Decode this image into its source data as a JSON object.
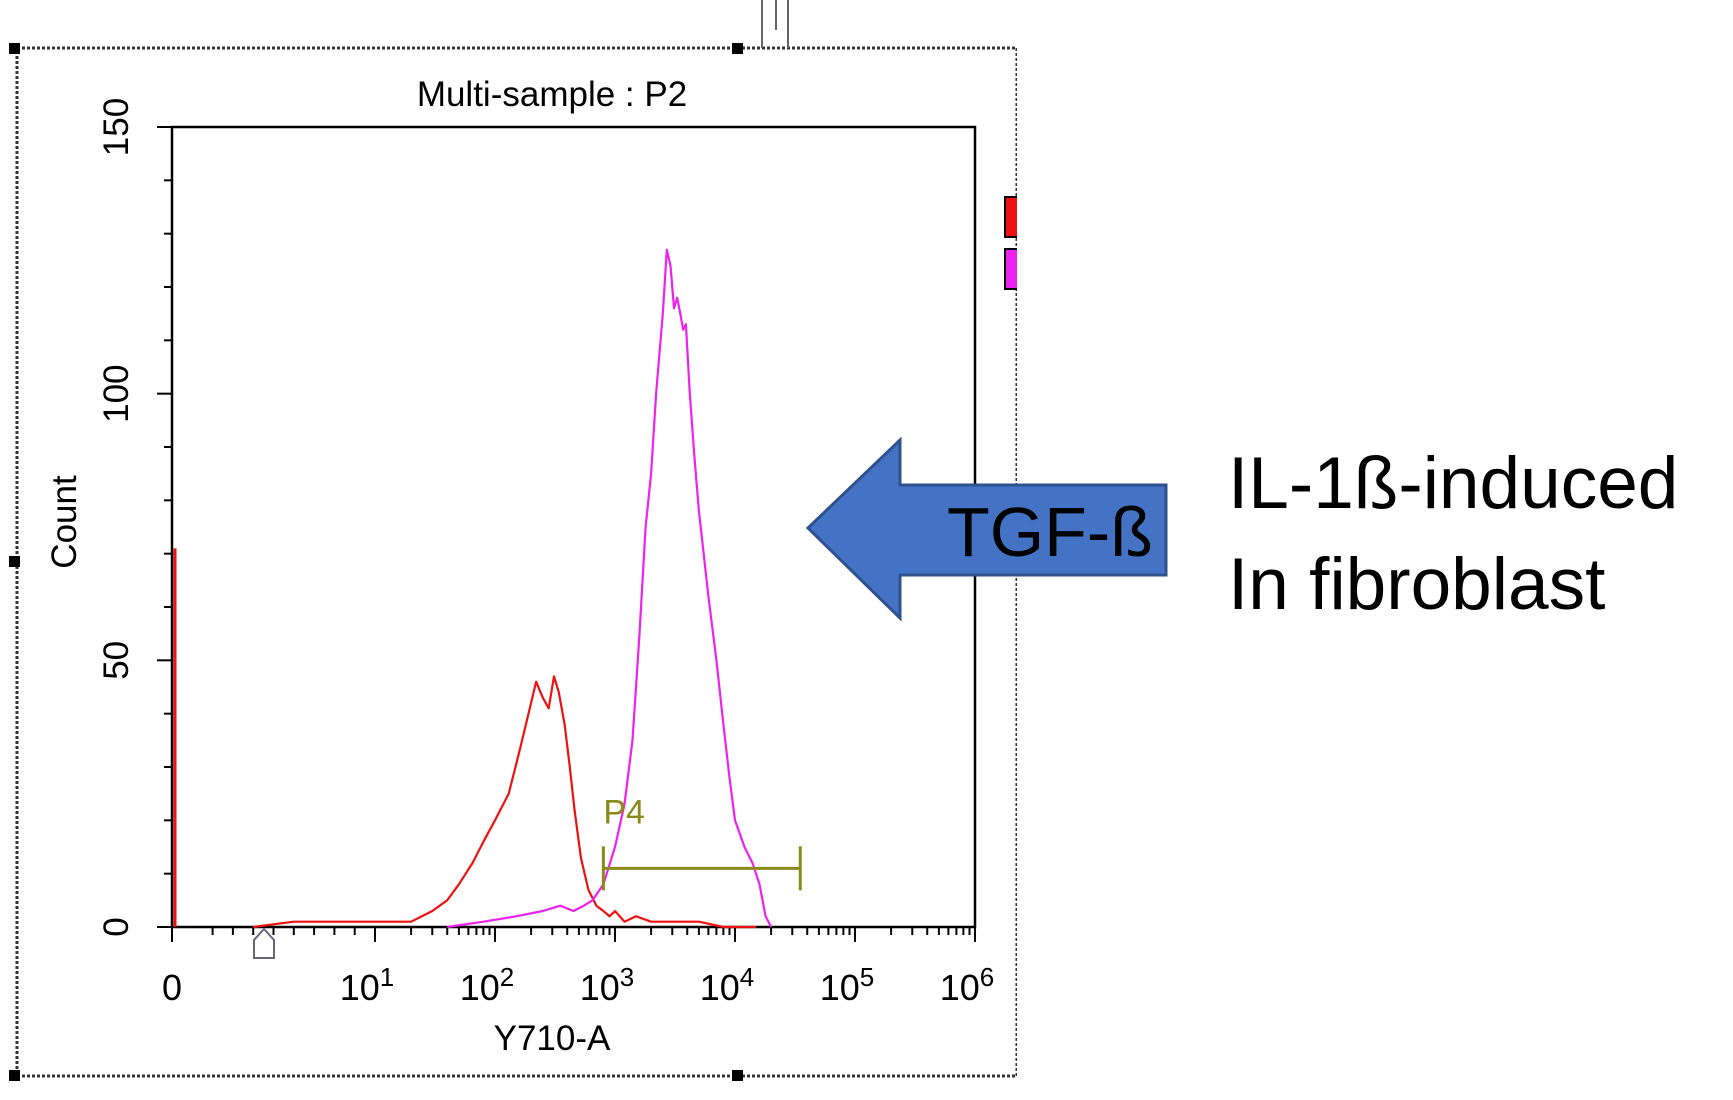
{
  "chart_data": {
    "type": "area",
    "title": "Multi-sample : P2",
    "xlabel": "Y710-A",
    "ylabel": "Count",
    "x_scale": "biexponential",
    "ylim": [
      0,
      150
    ],
    "y_ticks": [
      "0",
      "50",
      "100",
      "150"
    ],
    "x_ticks": [
      {
        "value": 0,
        "base": "0",
        "exp": ""
      },
      {
        "value": 10,
        "base": "10",
        "exp": "1"
      },
      {
        "value": 100,
        "base": "10",
        "exp": "2"
      },
      {
        "value": 1000,
        "base": "10",
        "exp": "3"
      },
      {
        "value": 10000,
        "base": "10",
        "exp": "4"
      },
      {
        "value": 100000,
        "base": "10",
        "exp": "5"
      },
      {
        "value": 1000000,
        "base": "10",
        "exp": "6"
      }
    ],
    "series": [
      {
        "color": "#ee1111",
        "points": [
          [
            4,
            0
          ],
          [
            6,
            1
          ],
          [
            10,
            1
          ],
          [
            20,
            1
          ],
          [
            30,
            3
          ],
          [
            40,
            5
          ],
          [
            50,
            8
          ],
          [
            65,
            12
          ],
          [
            80,
            16
          ],
          [
            100,
            20
          ],
          [
            130,
            25
          ],
          [
            160,
            33
          ],
          [
            190,
            40
          ],
          [
            220,
            46
          ],
          [
            250,
            43
          ],
          [
            280,
            41
          ],
          [
            310,
            47
          ],
          [
            340,
            44
          ],
          [
            380,
            38
          ],
          [
            420,
            30
          ],
          [
            460,
            22
          ],
          [
            520,
            13
          ],
          [
            600,
            7
          ],
          [
            700,
            4
          ],
          [
            800,
            3
          ],
          [
            900,
            2
          ],
          [
            1000,
            3
          ],
          [
            1200,
            1
          ],
          [
            1500,
            2
          ],
          [
            2000,
            1
          ],
          [
            3000,
            1
          ],
          [
            5000,
            1
          ],
          [
            8000,
            0
          ],
          [
            15000,
            0
          ]
        ],
        "axis_spike": 71
      },
      {
        "color": "#ee22ee",
        "points": [
          [
            40,
            0
          ],
          [
            80,
            1
          ],
          [
            150,
            2
          ],
          [
            250,
            3
          ],
          [
            350,
            4
          ],
          [
            450,
            3
          ],
          [
            550,
            4
          ],
          [
            650,
            5
          ],
          [
            800,
            8
          ],
          [
            1000,
            15
          ],
          [
            1200,
            23
          ],
          [
            1400,
            35
          ],
          [
            1600,
            55
          ],
          [
            1800,
            75
          ],
          [
            2000,
            85
          ],
          [
            2200,
            100
          ],
          [
            2500,
            115
          ],
          [
            2700,
            127
          ],
          [
            2900,
            124
          ],
          [
            3100,
            116
          ],
          [
            3300,
            118
          ],
          [
            3500,
            115
          ],
          [
            3700,
            112
          ],
          [
            3900,
            113
          ],
          [
            4200,
            100
          ],
          [
            4600,
            88
          ],
          [
            5000,
            78
          ],
          [
            6000,
            62
          ],
          [
            7000,
            50
          ],
          [
            8000,
            38
          ],
          [
            9000,
            28
          ],
          [
            10000,
            20
          ],
          [
            12000,
            15
          ],
          [
            14000,
            12
          ],
          [
            16000,
            8
          ],
          [
            18000,
            2
          ],
          [
            20000,
            0
          ]
        ]
      }
    ],
    "gate": {
      "label": "P4",
      "from": 800,
      "to": 35000,
      "y": 11
    },
    "legend": {
      "position": "right",
      "colors": [
        "#ee1111",
        "#ee22ee"
      ]
    },
    "annotation": {
      "label": "TGF-ß",
      "direction": "left"
    }
  },
  "slide": {
    "line1": "IL-1ß-induced",
    "line2": "In fibroblast"
  }
}
